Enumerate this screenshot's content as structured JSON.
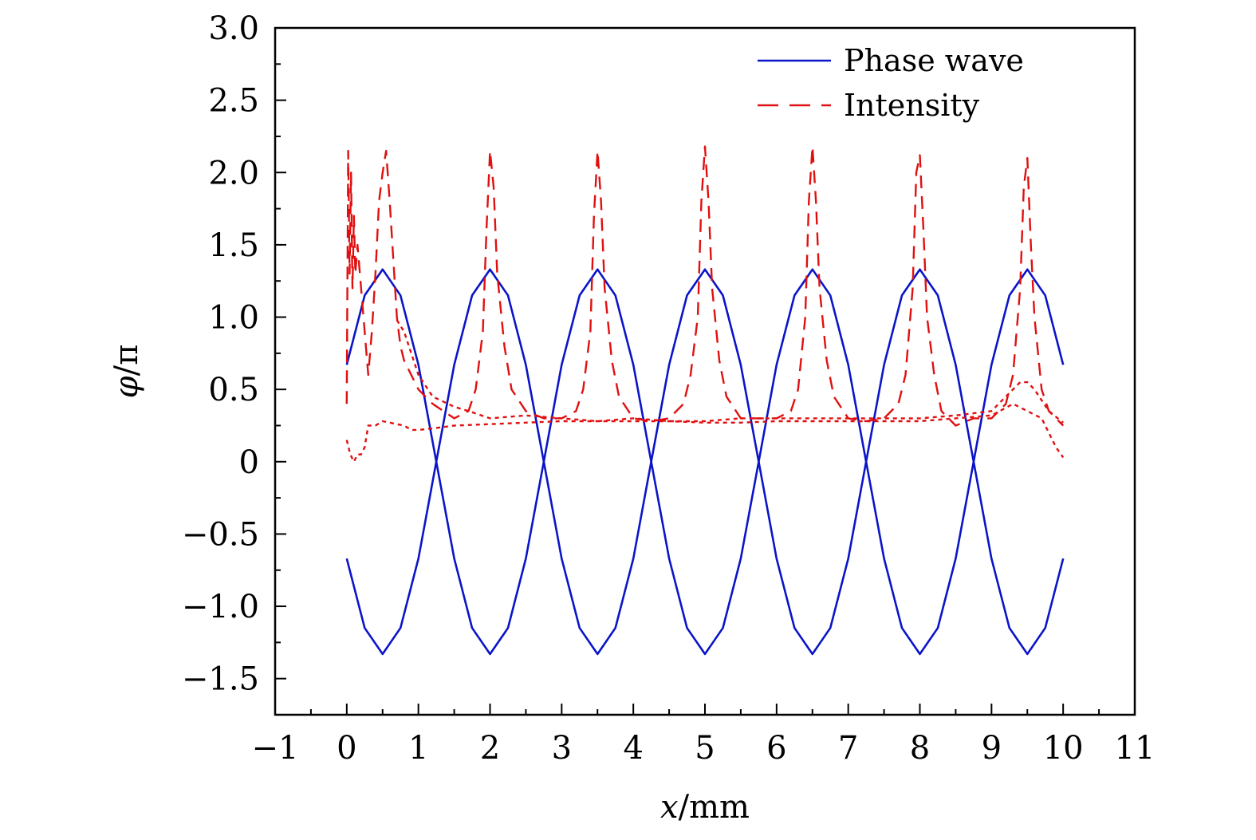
{
  "chart_data": {
    "type": "line",
    "title": "",
    "xlabel": {
      "var": "x",
      "unit": "/mm"
    },
    "ylabel": {
      "var": "φ",
      "unit": "/π"
    },
    "xlim": [
      -1,
      11
    ],
    "ylim": [
      -1.75,
      3.0
    ],
    "xticks": [
      -1,
      0,
      1,
      2,
      3,
      4,
      5,
      6,
      7,
      8,
      9,
      10,
      11
    ],
    "xtick_labels": [
      "−1",
      "0",
      "1",
      "2",
      "3",
      "4",
      "5",
      "6",
      "7",
      "8",
      "9",
      "10",
      "11"
    ],
    "yticks": [
      -1.5,
      -1.0,
      -0.5,
      0,
      0.5,
      1.0,
      1.5,
      2.0,
      2.5,
      3.0
    ],
    "ytick_labels": [
      "−1.5",
      "−1.0",
      "−0.5",
      "0",
      "0.5",
      "1.0",
      "1.5",
      "2.0",
      "2.5",
      "3.0"
    ],
    "grid": false,
    "legend_position": "top-right",
    "series": [
      {
        "name": "Phase wave",
        "style": "solid",
        "color": "#0a14c8",
        "x": [
          0,
          0.25,
          0.5,
          0.75,
          1.0,
          1.25,
          1.5,
          1.75,
          2.0,
          2.25,
          2.5,
          2.75,
          3.0,
          3.25,
          3.5,
          3.75,
          4.0,
          4.25,
          4.5,
          4.75,
          5.0,
          5.25,
          5.5,
          5.75,
          6.0,
          6.25,
          6.5,
          6.75,
          7.0,
          7.25,
          7.5,
          7.75,
          8.0,
          8.25,
          8.5,
          8.75,
          9.0,
          9.25,
          9.5,
          9.75,
          10.0
        ],
        "y": [
          0.67,
          1.15,
          1.33,
          1.15,
          0.67,
          0.0,
          -0.67,
          -1.15,
          -1.33,
          -1.15,
          -0.67,
          0.0,
          0.67,
          1.15,
          1.33,
          1.15,
          0.67,
          0.0,
          -0.67,
          -1.15,
          -1.33,
          -1.15,
          -0.67,
          0.0,
          0.67,
          1.15,
          1.33,
          1.15,
          0.67,
          0.0,
          -0.67,
          -1.15,
          -1.33,
          -1.15,
          -0.67,
          0.0,
          0.67,
          1.15,
          1.33,
          1.15,
          0.67
        ]
      },
      {
        "name": "",
        "style": "solid",
        "color": "#0a14c8",
        "x": [
          0,
          0.25,
          0.5,
          0.75,
          1.0,
          1.25,
          1.5,
          1.75,
          2.0,
          2.25,
          2.5,
          2.75,
          3.0,
          3.25,
          3.5,
          3.75,
          4.0,
          4.25,
          4.5,
          4.75,
          5.0,
          5.25,
          5.5,
          5.75,
          6.0,
          6.25,
          6.5,
          6.75,
          7.0,
          7.25,
          7.5,
          7.75,
          8.0,
          8.25,
          8.5,
          8.75,
          9.0,
          9.25,
          9.5,
          9.75,
          10.0
        ],
        "y": [
          -0.67,
          -1.15,
          -1.33,
          -1.15,
          -0.67,
          0.0,
          0.67,
          1.15,
          1.33,
          1.15,
          0.67,
          0.0,
          -0.67,
          -1.15,
          -1.33,
          -1.15,
          -0.67,
          0.0,
          0.67,
          1.15,
          1.33,
          1.15,
          0.67,
          0.0,
          -0.67,
          -1.15,
          -1.33,
          -1.15,
          -0.67,
          0.0,
          0.67,
          1.15,
          1.33,
          1.15,
          0.67,
          0.0,
          -0.67,
          -1.15,
          -1.33,
          -1.15,
          -0.67
        ]
      },
      {
        "name": "Intensity",
        "style": "dashed",
        "color": "#e01010",
        "x": [
          0,
          0.02,
          0.04,
          0.06,
          0.08,
          0.1,
          0.12,
          0.15,
          0.2,
          0.25,
          0.3,
          0.35,
          0.4,
          0.45,
          0.5,
          0.55,
          0.6,
          0.65,
          0.7,
          0.75,
          0.8,
          0.9,
          1.0,
          1.2,
          1.5,
          1.7,
          1.8,
          1.9,
          1.95,
          2.0,
          2.05,
          2.1,
          2.2,
          2.3,
          2.5,
          2.75,
          3.0,
          3.2,
          3.3,
          3.4,
          3.45,
          3.5,
          3.55,
          3.6,
          3.7,
          3.8,
          4.0,
          4.25,
          4.5,
          4.7,
          4.8,
          4.9,
          4.95,
          5.0,
          5.05,
          5.1,
          5.2,
          5.3,
          5.5,
          5.75,
          6.0,
          6.2,
          6.3,
          6.4,
          6.45,
          6.5,
          6.55,
          6.6,
          6.7,
          6.8,
          7.0,
          7.25,
          7.5,
          7.7,
          7.8,
          7.9,
          7.95,
          8.0,
          8.05,
          8.1,
          8.2,
          8.3,
          8.5,
          8.75,
          9.0,
          9.2,
          9.3,
          9.4,
          9.45,
          9.5,
          9.55,
          9.6,
          9.7,
          9.8,
          10.0
        ],
        "y": [
          0.4,
          2.15,
          1.3,
          2.0,
          1.2,
          1.7,
          1.3,
          1.5,
          1.2,
          0.9,
          0.6,
          0.9,
          1.3,
          1.8,
          2.0,
          2.15,
          1.8,
          1.4,
          1.0,
          0.8,
          0.7,
          0.6,
          0.5,
          0.4,
          0.3,
          0.35,
          0.5,
          0.9,
          1.6,
          2.15,
          1.9,
          1.3,
          0.8,
          0.5,
          0.35,
          0.3,
          0.3,
          0.35,
          0.5,
          0.9,
          1.7,
          2.15,
          1.8,
          1.2,
          0.7,
          0.45,
          0.3,
          0.28,
          0.3,
          0.4,
          0.6,
          1.0,
          1.8,
          2.18,
          1.8,
          1.2,
          0.7,
          0.45,
          0.3,
          0.3,
          0.3,
          0.35,
          0.5,
          1.0,
          1.8,
          2.18,
          1.8,
          1.2,
          0.7,
          0.45,
          0.3,
          0.28,
          0.3,
          0.4,
          0.6,
          1.2,
          2.0,
          2.12,
          1.6,
          1.0,
          0.6,
          0.35,
          0.25,
          0.3,
          0.3,
          0.4,
          0.6,
          1.2,
          1.9,
          2.1,
          1.5,
          1.0,
          0.5,
          0.35,
          0.25
        ]
      },
      {
        "name": "",
        "style": "dotted",
        "color": "#e01010",
        "x": [
          0,
          0.05,
          0.1,
          0.15,
          0.2,
          0.25,
          0.3,
          0.4,
          0.5,
          0.6,
          0.7,
          0.8,
          0.9,
          1.0,
          1.2,
          1.5,
          2.0,
          2.5,
          3.0,
          3.5,
          4.0,
          4.5,
          5.0,
          5.5,
          6.0,
          6.5,
          7.0,
          7.5,
          8.0,
          8.5,
          9.0,
          9.3,
          9.5,
          9.7,
          9.8,
          9.9,
          10.0
        ],
        "y": [
          0.15,
          0.05,
          0.0,
          0.05,
          0.05,
          0.1,
          0.25,
          0.25,
          0.28,
          0.27,
          0.26,
          0.25,
          0.22,
          0.22,
          0.23,
          0.25,
          0.26,
          0.27,
          0.28,
          0.28,
          0.28,
          0.28,
          0.27,
          0.27,
          0.28,
          0.28,
          0.28,
          0.28,
          0.28,
          0.3,
          0.32,
          0.4,
          0.35,
          0.3,
          0.2,
          0.1,
          0.03
        ]
      },
      {
        "name": "",
        "style": "dotted",
        "color": "#e01010",
        "x": [
          0.7,
          0.8,
          0.9,
          1.0,
          1.2,
          1.5,
          1.7,
          2.0,
          2.5,
          3.0,
          3.5,
          4.0,
          4.5,
          5.0,
          5.5,
          6.0,
          6.5,
          7.0,
          7.5,
          8.0,
          8.5,
          9.0,
          9.2,
          9.4,
          9.5,
          9.6,
          9.8,
          10.0
        ],
        "y": [
          0.98,
          0.9,
          0.75,
          0.6,
          0.45,
          0.38,
          0.35,
          0.3,
          0.32,
          0.3,
          0.28,
          0.3,
          0.28,
          0.28,
          0.3,
          0.3,
          0.3,
          0.3,
          0.3,
          0.3,
          0.32,
          0.35,
          0.45,
          0.55,
          0.55,
          0.5,
          0.35,
          0.27
        ]
      }
    ]
  }
}
